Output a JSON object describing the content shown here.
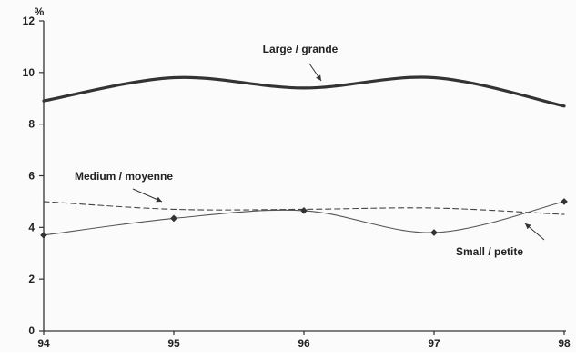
{
  "chart_data": {
    "type": "line",
    "x": [
      94,
      95,
      96,
      97,
      98
    ],
    "xlim": [
      94,
      98
    ],
    "ylim": [
      0,
      12
    ],
    "yticks": [
      0,
      2,
      4,
      6,
      8,
      10,
      12
    ],
    "xtick_labels": [
      "94",
      "95",
      "96",
      "97",
      "98"
    ],
    "ytick_labels": [
      "0",
      "2",
      "4",
      "6",
      "8",
      "10",
      "12"
    ],
    "yunit": "%",
    "grid": false,
    "series": [
      {
        "name": "Large / grande",
        "values": [
          8.9,
          9.8,
          9.4,
          9.8,
          8.7
        ],
        "style": "solid-bold",
        "markers": false,
        "color": "#333333"
      },
      {
        "name": "Medium / moyenne",
        "values": [
          5.0,
          4.7,
          4.7,
          4.75,
          4.5
        ],
        "style": "dashed",
        "markers": false,
        "color": "#444444"
      },
      {
        "name": "Small / petite",
        "values": [
          3.7,
          4.35,
          4.65,
          3.8,
          5.0
        ],
        "style": "solid-thin",
        "markers": true,
        "color": "#555555"
      }
    ],
    "annotations": [
      {
        "text": "Large / grande",
        "series": 0
      },
      {
        "text": "Medium / moyenne",
        "series": 1
      },
      {
        "text": "Small / petite",
        "series": 2
      }
    ]
  }
}
